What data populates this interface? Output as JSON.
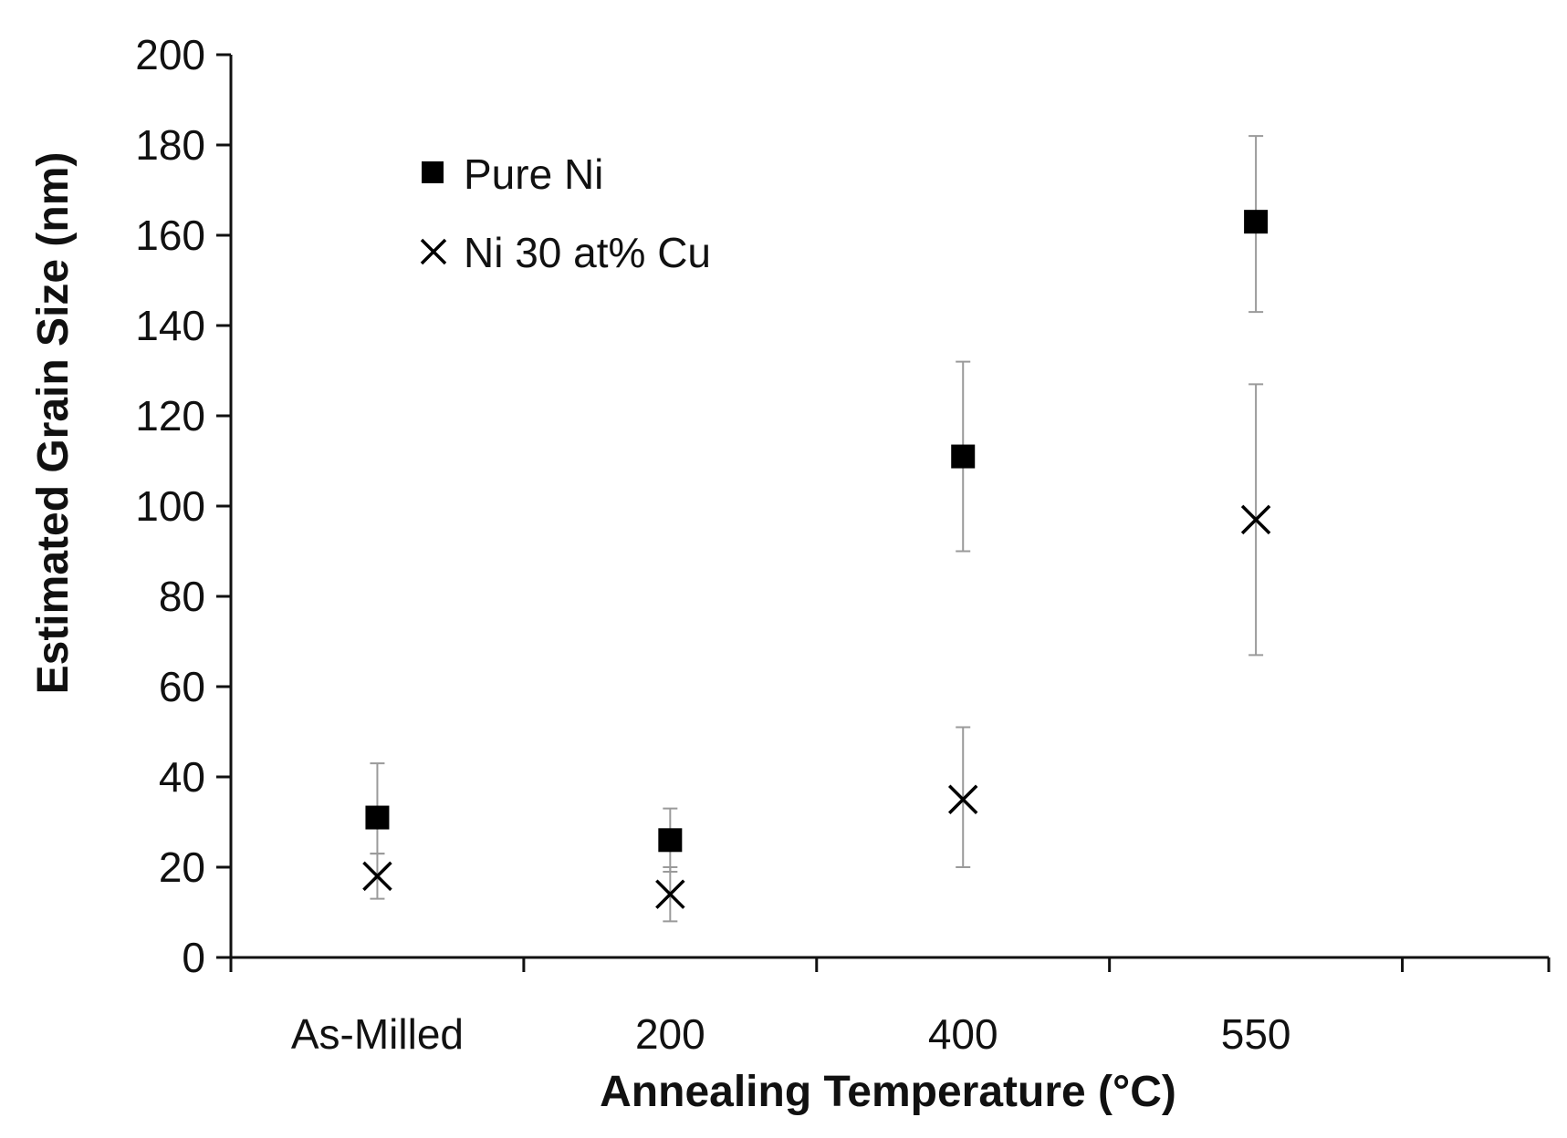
{
  "chart_data": {
    "type": "scatter",
    "title": "",
    "xlabel": "Annealing Temperature (°C)",
    "ylabel": "Estimated Grain Size (nm)",
    "categories": [
      "As-Milled",
      "200",
      "400",
      "550"
    ],
    "ylim": [
      0,
      200
    ],
    "yticks": [
      "0",
      "20",
      "40",
      "60",
      "80",
      "100",
      "120",
      "140",
      "160",
      "180",
      "200"
    ],
    "grid": false,
    "legend_position": "top-left",
    "series": [
      {
        "name": "Pure Ni",
        "marker": "square",
        "values": [
          31,
          26,
          111,
          163
        ],
        "error_low": [
          23,
          19,
          90,
          143
        ],
        "error_high": [
          43,
          33,
          132,
          182
        ]
      },
      {
        "name": "Ni 30 at% Cu",
        "marker": "x",
        "values": [
          18,
          14,
          35,
          97
        ],
        "error_low": [
          13,
          8,
          20,
          67
        ],
        "error_high": [
          23,
          20,
          51,
          127
        ]
      }
    ],
    "colors": {
      "marker": "#000000",
      "error_bar": "#9a9a9a",
      "axis": "#111111"
    }
  }
}
